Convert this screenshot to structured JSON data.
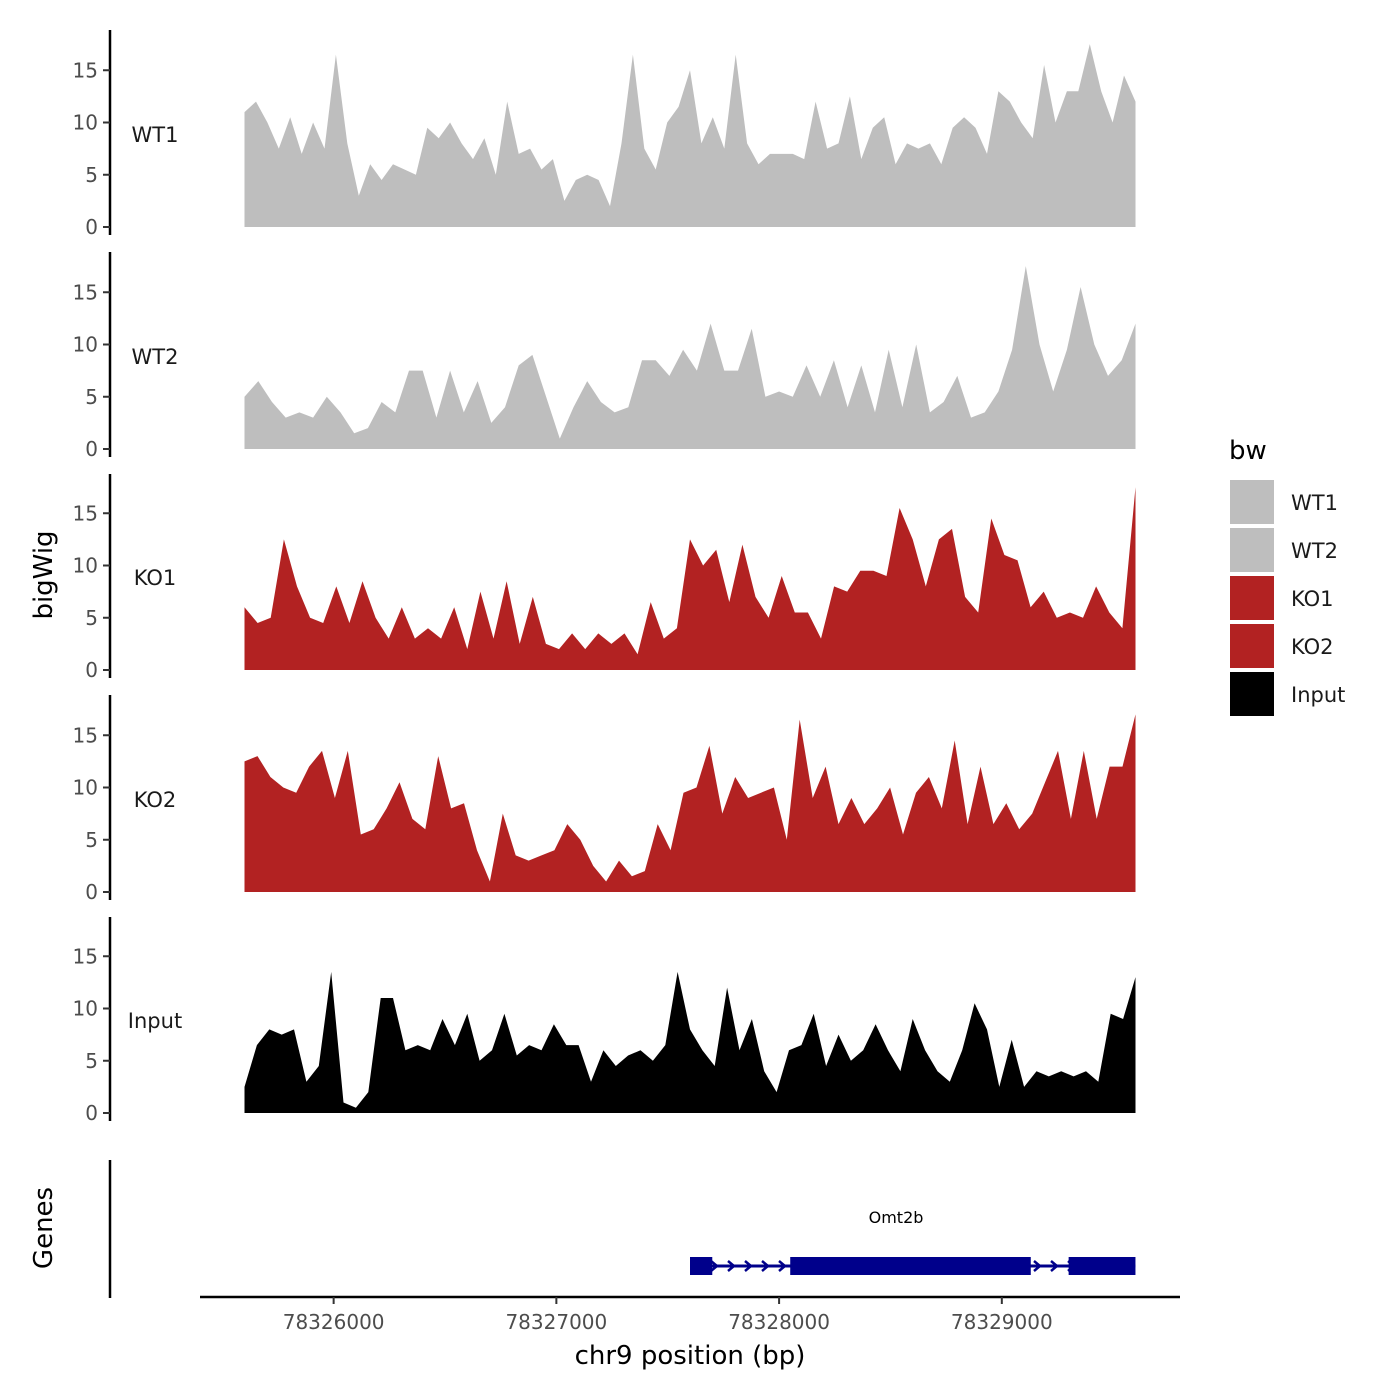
{
  "chart_data": {
    "type": "area",
    "chromosome": "chr9",
    "xlabel": "chr9 position (bp)",
    "ylabel": "bigWig",
    "gene_track_label": "Genes",
    "xlim": [
      78325400,
      78329800
    ],
    "x_range": [
      78325600,
      78329600
    ],
    "xticks": [
      78326000,
      78327000,
      78328000,
      78329000
    ],
    "ylim": [
      0,
      18.5
    ],
    "yticks": [
      0,
      5,
      10,
      15
    ],
    "legend": {
      "title": "bw",
      "entries": [
        {
          "label": "WT1",
          "color": "#bebebe"
        },
        {
          "label": "WT2",
          "color": "#bebebe"
        },
        {
          "label": "KO1",
          "color": "#b22222"
        },
        {
          "label": "KO2",
          "color": "#b22222"
        },
        {
          "label": "Input",
          "color": "#000000"
        }
      ],
      "position": "right"
    },
    "series": [
      {
        "name": "WT1",
        "color": "#bebebe",
        "values": [
          11,
          12,
          10,
          7.5,
          10.5,
          7,
          10,
          7.5,
          16.5,
          8,
          3,
          6,
          4.5,
          6,
          5.5,
          5,
          9.5,
          8.5,
          10,
          8,
          6.5,
          8.5,
          5,
          12,
          7,
          7.5,
          5.5,
          6.5,
          2.5,
          4.5,
          5,
          4.5,
          2,
          8,
          16.5,
          7.5,
          5.5,
          10,
          11.5,
          15,
          8,
          10.5,
          7.5,
          16.5,
          8,
          6,
          7,
          7,
          7,
          6.5,
          12,
          7.5,
          8,
          12.5,
          6.5,
          9.5,
          10.5,
          6,
          8,
          7.5,
          8,
          6,
          9.5,
          10.5,
          9.5,
          7,
          13,
          12,
          10,
          8.5,
          15.5,
          10,
          13,
          13,
          17.5,
          13,
          10,
          14.5,
          12
        ]
      },
      {
        "name": "WT2",
        "color": "#bebebe",
        "values": [
          5,
          6.5,
          4.5,
          3,
          3.5,
          3,
          5,
          3.5,
          1.5,
          2,
          4.5,
          3.5,
          7.5,
          7.5,
          3,
          7.5,
          3.5,
          6.5,
          2.5,
          4,
          8,
          9,
          5,
          1,
          4,
          6.5,
          4.5,
          3.5,
          4,
          8.5,
          8.5,
          7,
          9.5,
          7.5,
          12,
          7.5,
          7.5,
          11.5,
          5,
          5.5,
          5,
          8,
          5,
          8.5,
          4,
          8,
          3.5,
          9.5,
          4,
          10,
          3.5,
          4.5,
          7,
          3,
          3.5,
          5.5,
          9.5,
          17.5,
          10,
          5.5,
          9.5,
          15.5,
          10,
          7,
          8.5,
          12
        ]
      },
      {
        "name": "KO1",
        "color": "#b22222",
        "values": [
          6,
          4.5,
          5,
          12.5,
          8,
          5,
          4.5,
          8,
          4.5,
          8.5,
          5,
          3,
          6,
          3,
          4,
          3,
          6,
          2,
          7.5,
          3,
          8.5,
          2.5,
          7,
          2.5,
          2,
          3.5,
          2,
          3.5,
          2.5,
          3.5,
          1.5,
          6.5,
          3,
          4,
          12.5,
          10,
          11.5,
          6.5,
          12,
          7,
          5,
          9,
          5.5,
          5.5,
          3,
          8,
          7.5,
          9.5,
          9.5,
          9,
          15.5,
          12.5,
          8,
          12.5,
          13.5,
          7,
          5.5,
          14.5,
          11,
          10.5,
          6,
          7.5,
          5,
          5.5,
          5,
          8,
          5.5,
          4,
          17.5
        ]
      },
      {
        "name": "KO2",
        "color": "#b22222",
        "values": [
          12.5,
          13,
          11,
          10,
          9.5,
          12,
          13.5,
          9,
          13.5,
          5.5,
          6,
          8,
          10.5,
          7,
          6,
          13,
          8,
          8.5,
          4,
          1,
          7.5,
          3.5,
          3,
          3.5,
          4,
          6.5,
          5,
          2.5,
          1,
          3,
          1.5,
          2,
          6.5,
          4,
          9.5,
          10,
          14,
          7.5,
          11,
          9,
          9.5,
          10,
          5,
          16.5,
          9,
          12,
          6.5,
          9,
          6.5,
          8,
          10,
          5.5,
          9.5,
          11,
          8,
          14.5,
          6.5,
          12,
          6.5,
          8.5,
          6,
          7.5,
          10.5,
          13.5,
          7,
          13.5,
          7,
          12,
          12,
          17
        ]
      },
      {
        "name": "Input",
        "color": "#000000",
        "values": [
          2.5,
          6.5,
          8,
          7.5,
          8,
          3,
          4.5,
          13.5,
          1,
          0.5,
          2,
          11,
          11,
          6,
          6.5,
          6,
          9,
          6.5,
          9.5,
          5,
          6,
          9.5,
          5.5,
          6.5,
          6,
          8.5,
          6.5,
          6.5,
          3,
          6,
          4.5,
          5.5,
          6,
          5,
          6.5,
          13.5,
          8,
          6,
          4.5,
          12,
          6,
          9,
          4,
          2,
          6,
          6.5,
          9.5,
          4.5,
          7.5,
          5,
          6,
          8.5,
          6,
          4,
          9,
          6,
          4,
          3,
          6,
          10.5,
          8,
          2.5,
          7,
          2.5,
          4,
          3.5,
          4,
          3.5,
          4,
          3,
          9.5,
          9,
          13
        ]
      }
    ],
    "gene": {
      "name": "Omt2b",
      "start": 78327600,
      "end": 78329600,
      "strand": "+",
      "exons": [
        [
          78327600,
          78327700
        ],
        [
          78328050,
          78329130
        ],
        [
          78329300,
          78329600
        ]
      ],
      "color": "#00008b"
    }
  }
}
